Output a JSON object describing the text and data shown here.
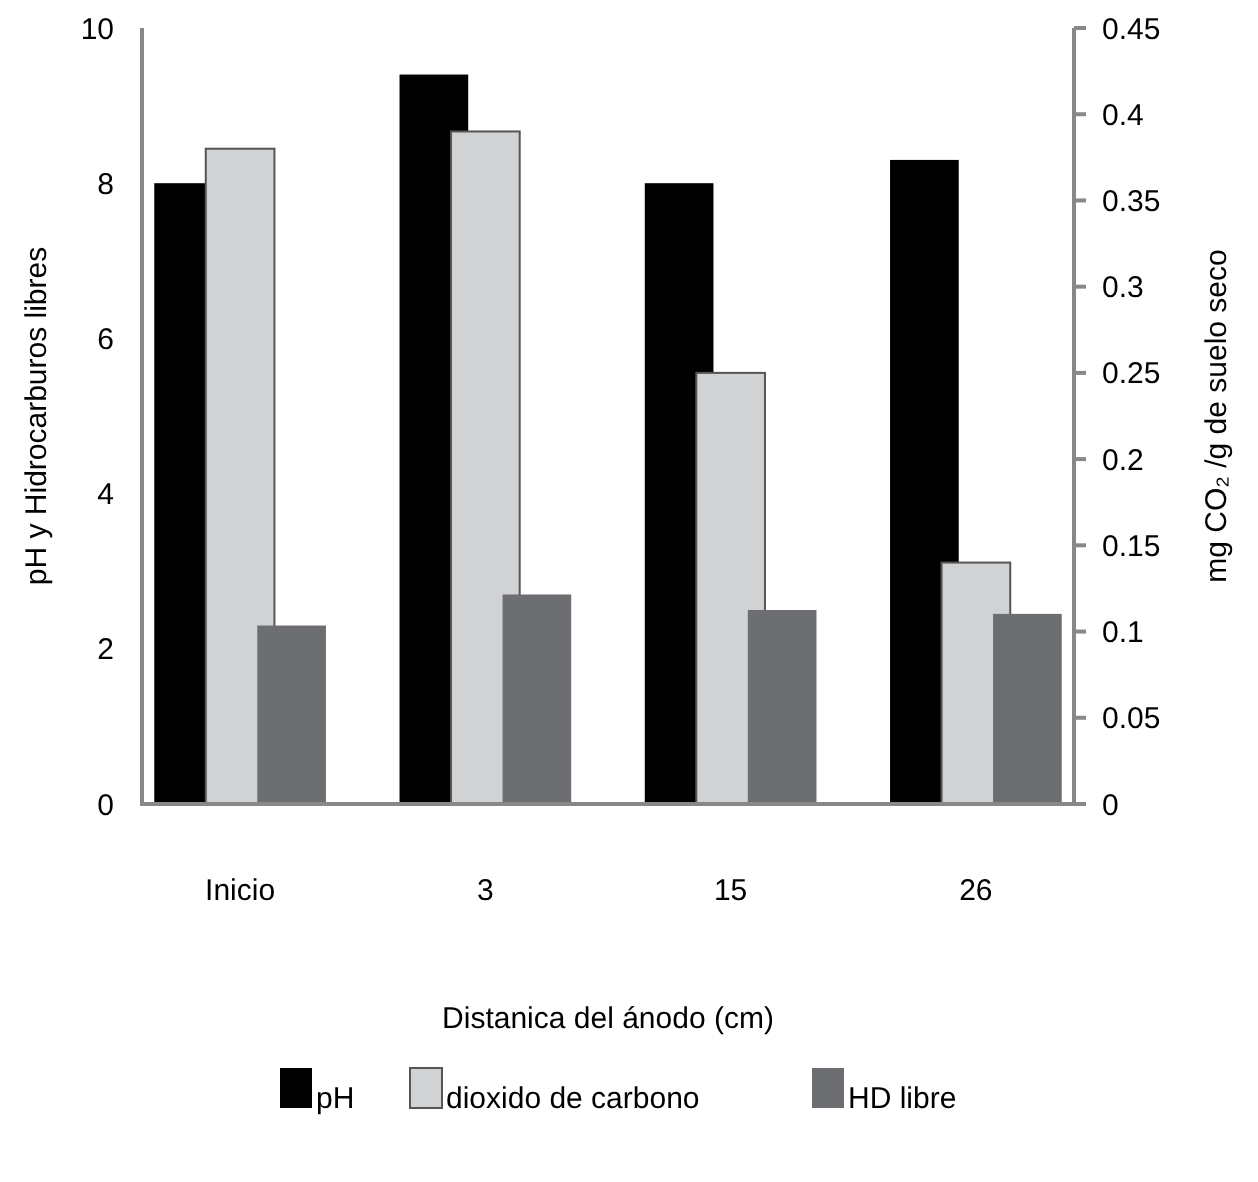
{
  "chart_data": {
    "type": "bar",
    "categories": [
      "Inicio",
      "3",
      "15",
      "26"
    ],
    "xlabel": "Distanica del ánodo (cm)",
    "ylabel": "pH y Hidrocarburos libres",
    "y2label": "mg CO₂ /g de suelo seco",
    "series": [
      {
        "name": "pH",
        "color": "#000000",
        "values": [
          8.0,
          9.4,
          8.0,
          8.3
        ]
      },
      {
        "name": "dioxido de carbono",
        "color": "#d1d2d4",
        "values": [
          0.38,
          0.39,
          0.25,
          0.14
        ],
        "axis": "y2"
      },
      {
        "name": "HD  libre",
        "color": "#6d6e71",
        "values": [
          2.3,
          2.7,
          2.5,
          2.45
        ]
      }
    ],
    "ylim": [
      0,
      10
    ],
    "yticks": [
      0,
      2,
      4,
      6,
      8,
      10
    ],
    "y2lim": [
      0,
      0.45
    ],
    "y2ticks": [
      0,
      0.05,
      0.1,
      0.15,
      0.2,
      0.25,
      0.3,
      0.35,
      0.4,
      0.45
    ],
    "grid": false,
    "legend": "bottom"
  }
}
